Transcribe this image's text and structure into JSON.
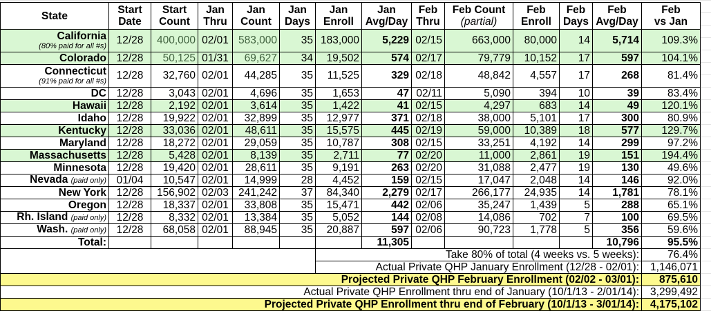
{
  "headers": [
    [
      "State",
      ""
    ],
    [
      "Start",
      "Date"
    ],
    [
      "Start",
      "Count"
    ],
    [
      "Jan",
      "Thru"
    ],
    [
      "Jan",
      "Count"
    ],
    [
      "Jan",
      "Days"
    ],
    [
      "Jan",
      "Enroll"
    ],
    [
      "Jan",
      "Avg/Day"
    ],
    [
      "Feb",
      "Thru"
    ],
    [
      "Feb Count",
      "(partial)"
    ],
    [
      "Feb",
      "Enroll"
    ],
    [
      "Feb",
      "Days"
    ],
    [
      "Feb",
      "Avg/Day"
    ],
    [
      "Feb",
      "vs Jan"
    ]
  ],
  "rows": [
    {
      "state": "California",
      "note": "(80% paid for all #s)",
      "note_block": true,
      "green": true,
      "muted": true,
      "v": [
        "12/28",
        "400,000",
        "02/01",
        "583,000",
        "35",
        "183,000",
        "5,229",
        "02/15",
        "663,000",
        "80,000",
        "14",
        "5,714",
        "109.3%"
      ]
    },
    {
      "state": "Colorado",
      "green": true,
      "muted": true,
      "v": [
        "12/28",
        "50,125",
        "01/31",
        "69,627",
        "34",
        "19,502",
        "574",
        "02/17",
        "79,779",
        "10,152",
        "17",
        "597",
        "104.1%"
      ]
    },
    {
      "state": "Connecticut",
      "note": "(91% paid for all #s)",
      "note_block": true,
      "v": [
        "12/28",
        "32,760",
        "02/01",
        "44,285",
        "35",
        "11,525",
        "329",
        "02/18",
        "48,842",
        "4,557",
        "17",
        "268",
        "81.4%"
      ]
    },
    {
      "state": "DC",
      "v": [
        "12/28",
        "3,043",
        "02/01",
        "4,696",
        "35",
        "1,653",
        "47",
        "02/11",
        "5,090",
        "394",
        "10",
        "39",
        "83.4%"
      ]
    },
    {
      "state": "Hawaii",
      "green": true,
      "v": [
        "12/28",
        "2,192",
        "02/01",
        "3,614",
        "35",
        "1,422",
        "41",
        "02/15",
        "4,297",
        "683",
        "14",
        "49",
        "120.1%"
      ]
    },
    {
      "state": "Idaho",
      "v": [
        "12/28",
        "19,922",
        "02/01",
        "32,899",
        "35",
        "12,977",
        "371",
        "02/18",
        "38,000",
        "5,101",
        "17",
        "300",
        "80.9%"
      ]
    },
    {
      "state": "Kentucky",
      "green": true,
      "v": [
        "12/28",
        "33,036",
        "02/01",
        "48,611",
        "35",
        "15,575",
        "445",
        "02/19",
        "59,000",
        "10,389",
        "18",
        "577",
        "129.7%"
      ]
    },
    {
      "state": "Maryland",
      "v": [
        "12/28",
        "18,272",
        "02/01",
        "29,059",
        "35",
        "10,787",
        "308",
        "02/15",
        "33,251",
        "4,192",
        "14",
        "299",
        "97.2%"
      ]
    },
    {
      "state": "Massachusetts",
      "green": true,
      "v": [
        "12/28",
        "5,428",
        "02/01",
        "8,139",
        "35",
        "2,711",
        "77",
        "02/20",
        "11,000",
        "2,861",
        "19",
        "151",
        "194.4%"
      ]
    },
    {
      "state": "Minnesota",
      "v": [
        "12/28",
        "19,420",
        "02/01",
        "28,611",
        "35",
        "9,191",
        "263",
        "02/20",
        "31,088",
        "2,477",
        "19",
        "130",
        "49.6%"
      ]
    },
    {
      "state": "Nevada",
      "note": "(paid only)",
      "v": [
        "01/04",
        "10,547",
        "02/01",
        "14,999",
        "28",
        "4,452",
        "159",
        "02/15",
        "17,047",
        "2,048",
        "14",
        "146",
        "92.0%"
      ]
    },
    {
      "state": "New York",
      "v": [
        "12/28",
        "156,902",
        "02/03",
        "241,242",
        "37",
        "84,340",
        "2,279",
        "02/17",
        "266,177",
        "24,935",
        "14",
        "1,781",
        "78.1%"
      ]
    },
    {
      "state": "Oregon",
      "v": [
        "12/28",
        "18,337",
        "02/01",
        "33,808",
        "35",
        "15,471",
        "442",
        "02/06",
        "35,247",
        "1,439",
        "5",
        "288",
        "65.1%"
      ]
    },
    {
      "state": "Rh. Island",
      "note": "(paid only)",
      "v": [
        "12/28",
        "8,332",
        "02/01",
        "13,384",
        "35",
        "5,052",
        "144",
        "02/08",
        "14,086",
        "702",
        "7",
        "100",
        "69.5%"
      ]
    },
    {
      "state": "Wash.",
      "note": "(paid only)",
      "v": [
        "12/28",
        "68,058",
        "02/01",
        "88,945",
        "35",
        "20,887",
        "597",
        "02/06",
        "90,723",
        "1,778",
        "5",
        "356",
        "59.6%"
      ]
    }
  ],
  "total": {
    "label": "Total:",
    "jan_avg": "11,305",
    "feb_avg": "10,796",
    "feb_vs_jan": "95.5%"
  },
  "summary": [
    {
      "label": "Take 80% of total (4 weeks vs. 5 weeks):",
      "value": "76.4%",
      "highlight": false,
      "wide": false
    },
    {
      "label": "Actual Private QHP January Enrollment (12/28 - 02/01):",
      "value": "1,146,071",
      "highlight": false,
      "wide": false
    },
    {
      "label": "Projected Private QHP February Enrollment (02/02 - 03/01):",
      "value": "875,610",
      "highlight": true,
      "wide": true
    },
    {
      "label": "Actual Private QHP Enrollment thru end of January (10/1/13 - 2/01/14):",
      "value": "3,299,492",
      "highlight": false,
      "wide": true
    },
    {
      "label": "Projected Private QHP Enrollment thru end of February (10/1/13 - 3/01/14):",
      "value": "4,175,102",
      "highlight": true,
      "wide": true
    }
  ],
  "colors": {
    "green_row": "#d9f7d3",
    "yellow_row": "#fdf98e",
    "muted_text": "#41623f"
  }
}
